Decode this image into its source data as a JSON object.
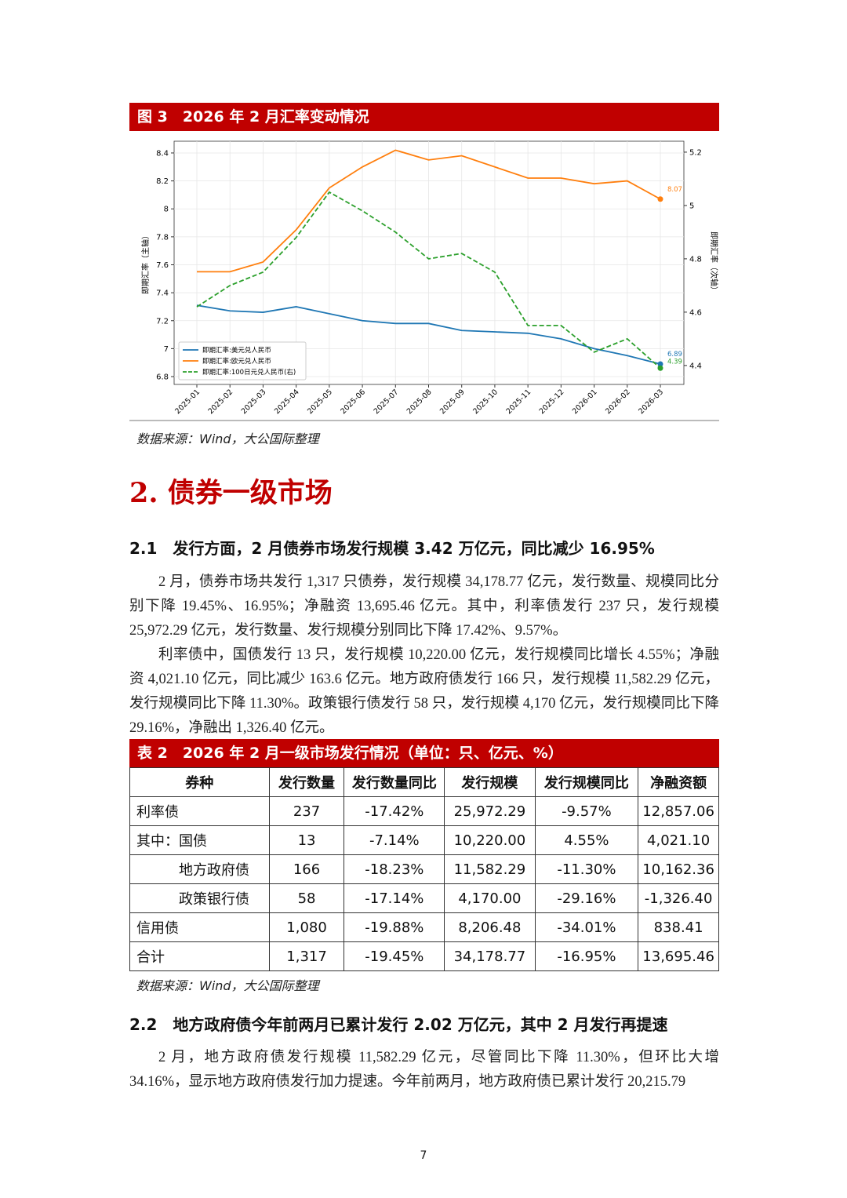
{
  "figure": {
    "title": "图 3　2026 年 2 月汇率变动情况",
    "source": "数据来源：Wind，大公国际整理"
  },
  "chart_data": {
    "type": "line",
    "x": [
      "2025-01",
      "2025-02",
      "2025-03",
      "2025-04",
      "2025-05",
      "2025-06",
      "2025-07",
      "2025-08",
      "2025-09",
      "2025-10",
      "2025-11",
      "2025-12",
      "2026-01",
      "2026-02",
      "2026-03"
    ],
    "y_label": "即期汇率（主轴）",
    "y2_label": "即期汇率（次轴）",
    "ylim": [
      6.744,
      8.484
    ],
    "yticks": [
      6.8,
      7.0,
      7.2,
      7.4,
      7.6,
      7.8,
      8.0,
      8.2,
      8.4
    ],
    "y2lim": [
      4.329,
      5.241
    ],
    "y2ticks": [
      4.4,
      4.6,
      4.8,
      5.0,
      5.2
    ],
    "grid": true,
    "legend": "lower left",
    "series": [
      {
        "name": "即期汇率:美元兑人民币",
        "color": "#1f77b4",
        "linestyle": "solid",
        "values": [
          7.31,
          7.27,
          7.26,
          7.3,
          7.25,
          7.2,
          7.18,
          7.18,
          7.13,
          7.12,
          7.11,
          7.07,
          7.0,
          6.95,
          6.89
        ],
        "value_labels": [
          null,
          null,
          null,
          null,
          null,
          null,
          null,
          null,
          null,
          null,
          null,
          null,
          null,
          null,
          "6.89"
        ]
      },
      {
        "name": "即期汇率:欧元兑人民币",
        "color": "#ff7f0e",
        "linestyle": "solid",
        "values": [
          7.55,
          7.55,
          7.62,
          7.85,
          8.15,
          8.3,
          8.42,
          8.35,
          8.38,
          8.3,
          8.22,
          8.22,
          8.18,
          8.2,
          8.07
        ],
        "value_labels": [
          null,
          null,
          null,
          null,
          null,
          null,
          null,
          null,
          null,
          null,
          null,
          null,
          null,
          null,
          "8.07"
        ]
      },
      {
        "name": "即期汇率:100日元兑人民币(右)",
        "color": "#2ca02c",
        "linestyle": "dashed",
        "axis": "y2",
        "values": [
          4.62,
          4.7,
          4.75,
          4.88,
          5.05,
          4.98,
          4.9,
          4.8,
          4.82,
          4.75,
          4.55,
          4.55,
          4.45,
          4.5,
          4.39
        ],
        "value_labels": [
          null,
          null,
          null,
          null,
          null,
          null,
          null,
          null,
          null,
          null,
          null,
          null,
          null,
          null,
          "4.39"
        ]
      }
    ]
  },
  "section": {
    "title": "2. 债券一级市场"
  },
  "subsection_1": {
    "title": "2.1　发行方面，2 月债券市场发行规模 3.42 万亿元，同比减少 16.95%",
    "paragraphs": [
      "2 月，债券市场共发行 1,317 只债券，发行规模 34,178.77 亿元，发行数量、规模同比分别下降 19.45%、16.95%；净融资 13,695.46 亿元。其中，利率债发行 237 只，发行规模 25,972.29 亿元，发行数量、发行规模分别同比下降 17.42%、9.57%。",
      "利率债中，国债发行 13 只，发行规模 10,220.00 亿元，发行规模同比增长 4.55%；净融资 4,021.10 亿元，同比减少 163.6 亿元。地方政府债发行 166 只，发行规模 11,582.29 亿元，发行规模同比下降 11.30%。政策银行债发行 58 只，发行规模 4,170 亿元，发行规模同比下降 29.16%，净融出 1,326.40 亿元。"
    ]
  },
  "table": {
    "title": "表 2　2026 年 2 月一级市场发行情况（单位：只、亿元、%）",
    "header": [
      "券种",
      "发行数量",
      "发行数量同比",
      "发行规模",
      "发行规模同比",
      "净融资额"
    ],
    "rows": [
      [
        "利率债",
        "237",
        "-17.42%",
        "25,972.29",
        "-9.57%",
        "12,857.06"
      ],
      [
        "其中：国债",
        "13",
        "-7.14%",
        "10,220.00",
        "4.55%",
        "4,021.10"
      ],
      [
        "地方政府债",
        "166",
        "-18.23%",
        "11,582.29",
        "-11.30%",
        "10,162.36"
      ],
      [
        "政策银行债",
        "58",
        "-17.14%",
        "4,170.00",
        "-29.16%",
        "-1,326.40"
      ],
      [
        "信用债",
        "1,080",
        "-19.88%",
        "8,206.48",
        "-34.01%",
        "838.41"
      ],
      [
        "合计",
        "1,317",
        "-19.45%",
        "34,178.77",
        "-16.95%",
        "13,695.46"
      ]
    ],
    "source": "数据来源：Wind，大公国际整理"
  },
  "subsection_2": {
    "title": "2.2　地方政府债今年前两月已累计发行 2.02 万亿元，其中 2 月发行再提速",
    "paragraphs": [
      "2 月，地方政府债发行规模 11,582.29 亿元，尽管同比下降 11.30%，但环比大增 34.16%，显示地方政府债发行加力提速。今年前两月，地方政府债已累计发行 20,215.79"
    ]
  },
  "page_number": "7"
}
